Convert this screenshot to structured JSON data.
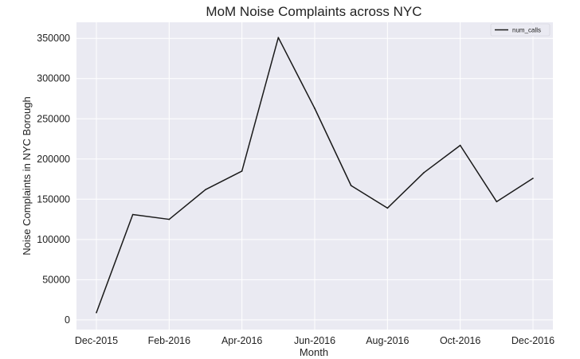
{
  "chart_data": {
    "type": "line",
    "title": "MoM Noise Complaints across NYC",
    "xlabel": "Month",
    "ylabel": "Noise Complaints in NYC Borough",
    "x": [
      "Dec-2015",
      "Jan-2016",
      "Feb-2016",
      "Mar-2016",
      "Apr-2016",
      "May-2016",
      "Jun-2016",
      "Jul-2016",
      "Aug-2016",
      "Sep-2016",
      "Oct-2016",
      "Nov-2016",
      "Dec-2016"
    ],
    "xtick_labels": [
      "Dec-2015",
      "Feb-2016",
      "Apr-2016",
      "Jun-2016",
      "Aug-2016",
      "Oct-2016",
      "Dec-2016"
    ],
    "series": [
      {
        "name": "num_calls",
        "values": [
          9000,
          131000,
          125000,
          162000,
          185000,
          351000,
          263000,
          167000,
          139000,
          183000,
          217000,
          147000,
          176000
        ]
      }
    ],
    "ylim": [
      -12000,
      370000
    ],
    "yticks": [
      0,
      50000,
      100000,
      150000,
      200000,
      250000,
      300000,
      350000
    ],
    "grid": true,
    "legend_position": "top-right",
    "colors": {
      "background": "#eaeaf2",
      "grid": "#ffffff",
      "line": "#1a1a1a"
    }
  }
}
